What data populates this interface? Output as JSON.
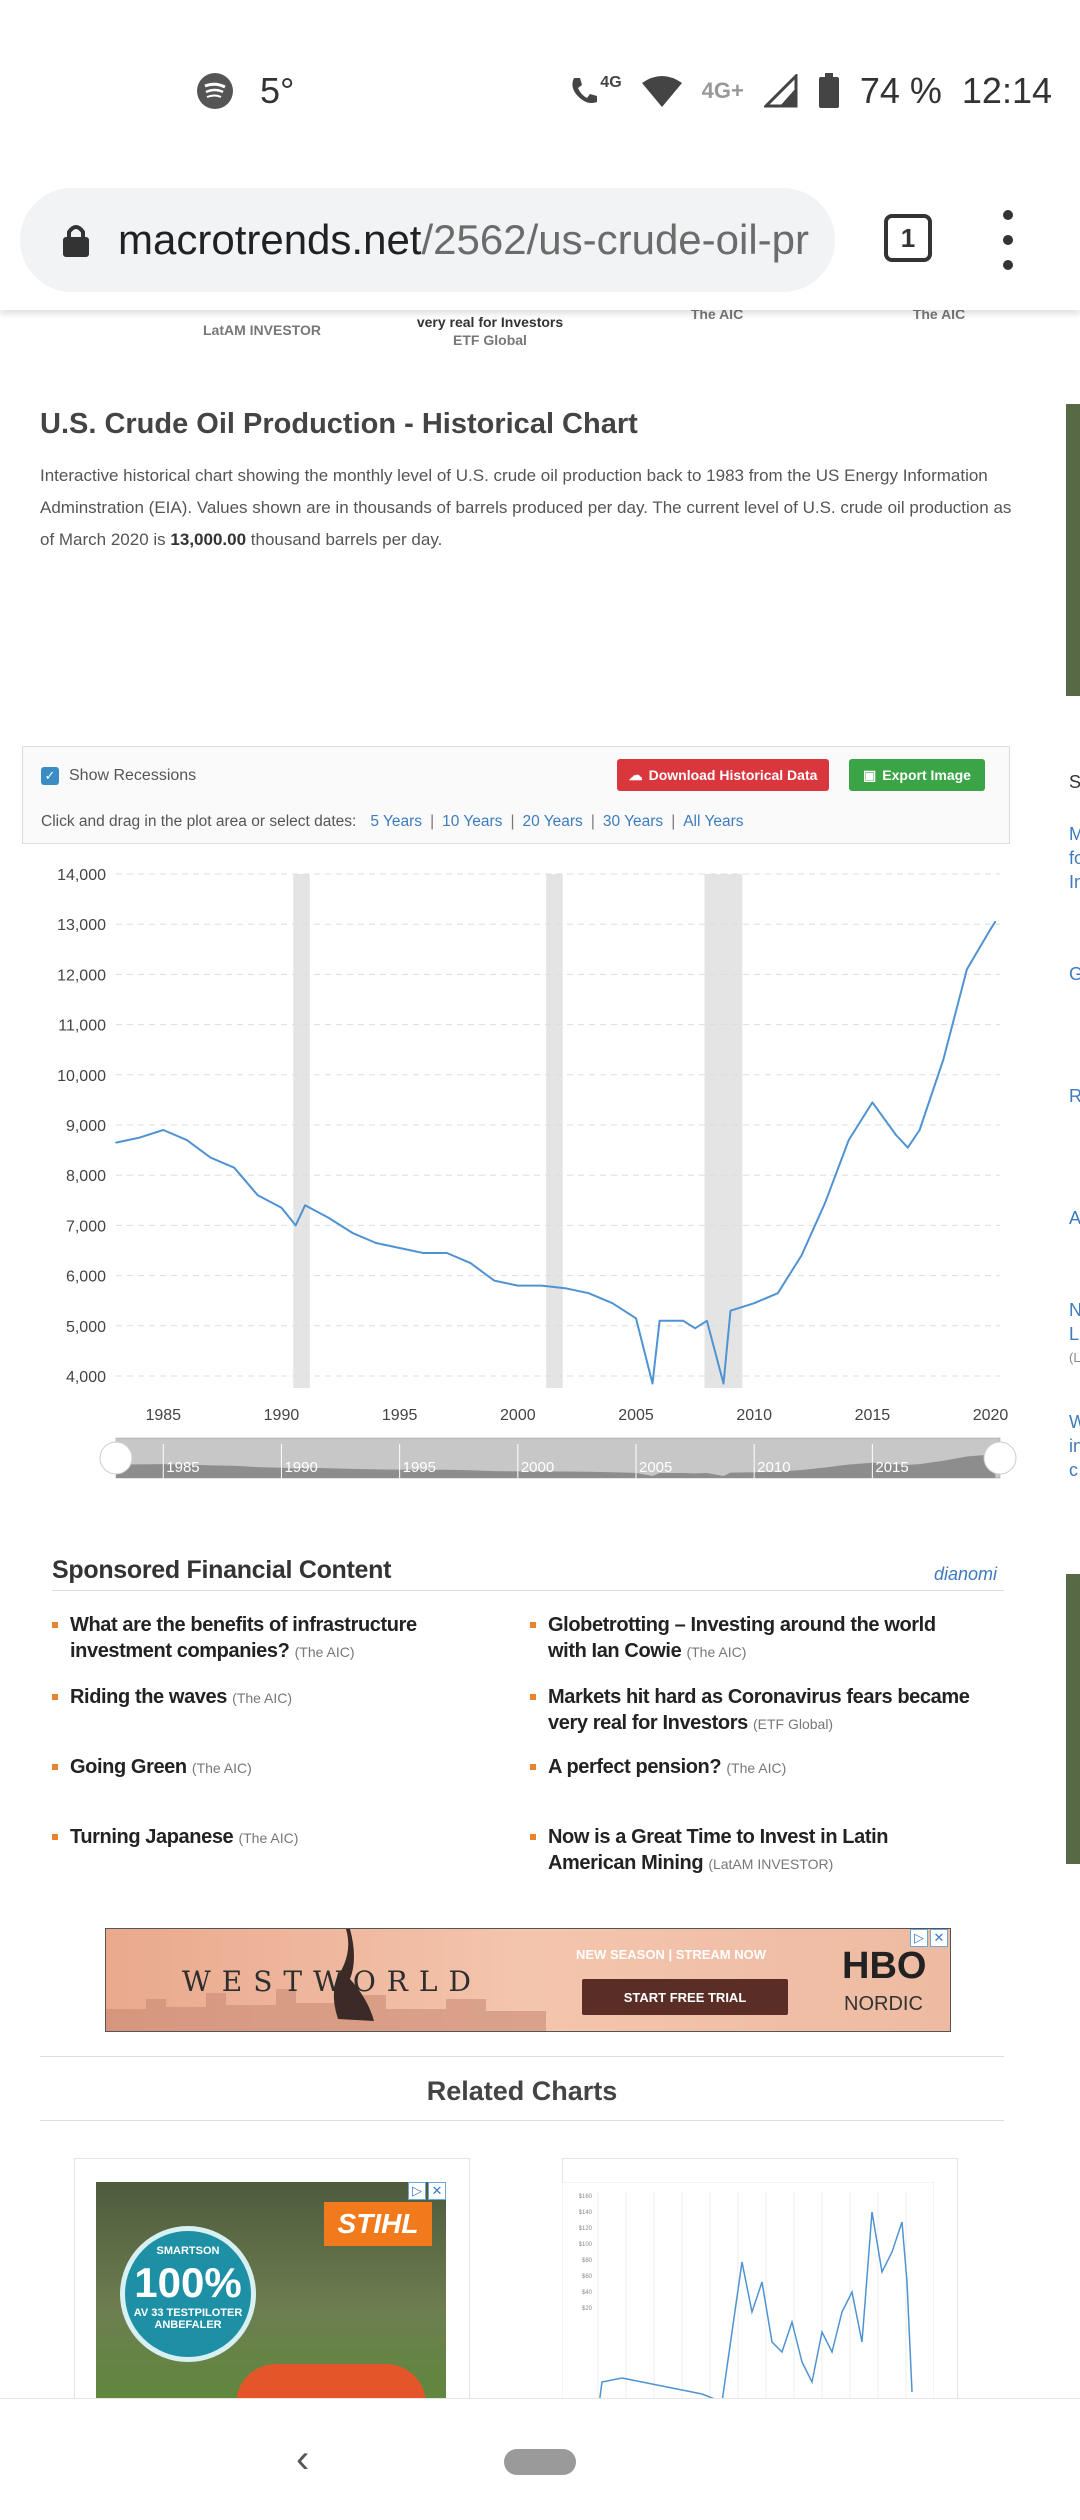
{
  "status_bar": {
    "temperature": "5°",
    "network_4g": "4G",
    "network_4g_plus": "4G+",
    "battery": "74 %",
    "time": "12:14",
    "icons": [
      "spotify-icon",
      "wifi-calling-icon",
      "wifi-icon",
      "signal-icon",
      "battery-icon"
    ]
  },
  "browser": {
    "url_domain": "macrotrends.net",
    "url_path": "/2562/us-crude-oil-pr",
    "tab_count": "1"
  },
  "top_fragments": {
    "latam": "LatAM INVESTOR",
    "real_line": "very real for Investors",
    "etf": "ETF Global",
    "aic1": "The AIC",
    "aic2": "The AIC"
  },
  "article": {
    "title": "U.S. Crude Oil Production - Historical Chart",
    "description_pre": "Interactive historical chart showing the monthly level of U.S. crude oil production back to 1983 from the US Energy Information Adminstration (EIA). Values shown are in thousands of barrels produced per day. The current level of U.S. crude oil production as of March 2020 is ",
    "description_value": "13,000.00",
    "description_post": " thousand barrels per day."
  },
  "controls": {
    "show_recessions": "Show Recessions",
    "download_button": "Download Historical Data",
    "export_button": "Export Image",
    "range_prompt": "Click and drag in the plot area or select dates:",
    "ranges": [
      "5 Years",
      "10 Years",
      "20 Years",
      "30 Years",
      "All Years"
    ],
    "separator": "|"
  },
  "chart_data": {
    "type": "line",
    "title": "",
    "xlabel": "",
    "ylabel": "",
    "ylim": [
      3000,
      14000
    ],
    "xlim": [
      1983,
      2020.4
    ],
    "y_ticks": [
      "14,000",
      "13,000",
      "12,000",
      "11,000",
      "10,000",
      "9,000",
      "8,000",
      "7,000",
      "6,000",
      "5,000",
      "4,000"
    ],
    "x_ticks": [
      "1985",
      "1990",
      "1995",
      "2000",
      "2005",
      "2010",
      "2015",
      "2020"
    ],
    "navigator_ticks": [
      "1985",
      "1990",
      "1995",
      "2000",
      "2005",
      "2010",
      "2015"
    ],
    "grid": true,
    "recessions": [
      [
        1990.5,
        1991.2
      ],
      [
        2001.2,
        2001.9
      ],
      [
        2007.9,
        2009.5
      ]
    ],
    "series": [
      {
        "values": [
          [
            1983.0,
            8650
          ],
          [
            1984.0,
            8750
          ],
          [
            1985.0,
            8900
          ],
          [
            1986.0,
            8700
          ],
          [
            1987.0,
            8350
          ],
          [
            1988.0,
            8150
          ],
          [
            1989.0,
            7600
          ],
          [
            1990.0,
            7350
          ],
          [
            1990.6,
            7000
          ],
          [
            1991.0,
            7400
          ],
          [
            1992.0,
            7150
          ],
          [
            1993.0,
            6850
          ],
          [
            1994.0,
            6650
          ],
          [
            1995.0,
            6550
          ],
          [
            1996.0,
            6450
          ],
          [
            1997.0,
            6450
          ],
          [
            1998.0,
            6250
          ],
          [
            1999.0,
            5900
          ],
          [
            2000.0,
            5800
          ],
          [
            2001.0,
            5800
          ],
          [
            2002.0,
            5750
          ],
          [
            2003.0,
            5650
          ],
          [
            2004.0,
            5450
          ],
          [
            2005.0,
            5150
          ],
          [
            2005.7,
            3850
          ],
          [
            2006.0,
            5100
          ],
          [
            2007.0,
            5100
          ],
          [
            2007.5,
            4950
          ],
          [
            2008.0,
            5100
          ],
          [
            2008.7,
            3850
          ],
          [
            2009.0,
            5300
          ],
          [
            2010.0,
            5450
          ],
          [
            2011.0,
            5650
          ],
          [
            2012.0,
            6400
          ],
          [
            2013.0,
            7450
          ],
          [
            2014.0,
            8700
          ],
          [
            2015.0,
            9450
          ],
          [
            2016.0,
            8800
          ],
          [
            2016.5,
            8550
          ],
          [
            2017.0,
            8900
          ],
          [
            2018.0,
            10300
          ],
          [
            2019.0,
            12100
          ],
          [
            2019.5,
            12500
          ],
          [
            2020.0,
            12900
          ],
          [
            2020.2,
            13050
          ]
        ]
      }
    ]
  },
  "sponsored": {
    "title": "Sponsored Financial Content",
    "provider": "dianomi",
    "items": [
      {
        "headline": "What are the benefits of infrastructure investment companies?",
        "source": "(The AIC)"
      },
      {
        "headline": "Globetrotting – Investing around the world with Ian Cowie",
        "source": "(The AIC)"
      },
      {
        "headline": "Riding the waves",
        "source": "(The AIC)"
      },
      {
        "headline": "Markets hit hard as Coronavirus fears became very real for Investors",
        "source": "(ETF Global)"
      },
      {
        "headline": "Going Green",
        "source": "(The AIC)"
      },
      {
        "headline": "A perfect pension?",
        "source": "(The AIC)"
      },
      {
        "headline": "Turning Japanese",
        "source": "(The AIC)"
      },
      {
        "headline": "Now is a Great Time to Invest in Latin American Mining",
        "source": "(LatAM INVESTOR)"
      }
    ]
  },
  "ad_westworld": {
    "title": "WESTWORLD",
    "tagline": "NEW SEASON  |  STREAM NOW",
    "cta": "START FREE TRIAL",
    "brand": "HBO",
    "brand_sub": "NORDIC"
  },
  "related": {
    "title": "Related Charts"
  },
  "ad_stihl": {
    "brand": "STIHL",
    "badge_top": "SMARTSON",
    "badge_value": "100%",
    "badge_sub": "AV 33 TESTPILOTER",
    "badge_bottom": "ANBEFALER"
  },
  "thumbnail_chart": {
    "y_ticks": [
      "$160",
      "$140",
      "$120",
      "$100",
      "$80",
      "$60",
      "$40",
      "$20"
    ]
  },
  "side_letters": [
    "S",
    "M",
    "fo",
    "In",
    "G",
    "R",
    "A",
    "N",
    "L",
    "(L",
    "W",
    "in",
    "c"
  ],
  "colors": {
    "line": "#4f93d2",
    "recession": "#e4e4e4",
    "link": "#3d7bbf",
    "download_btn": "#d9363e",
    "export_btn": "#3aa447",
    "bullet": "#e8822d"
  }
}
